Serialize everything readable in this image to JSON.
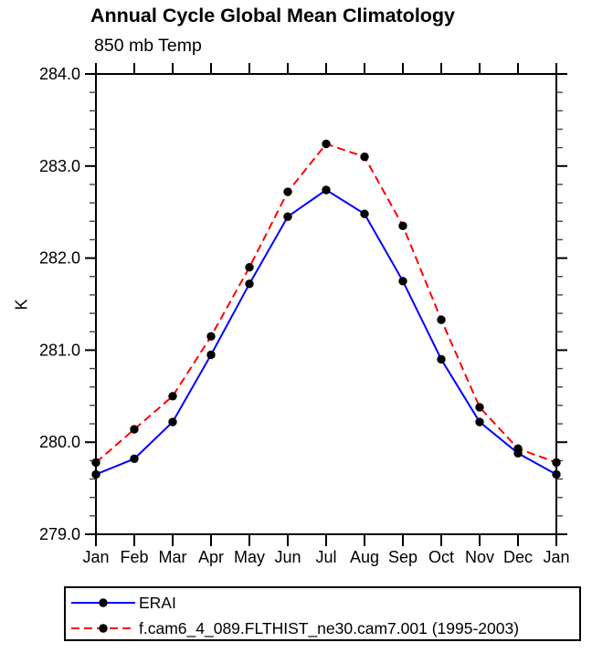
{
  "page": {
    "title": "Annual Cycle Global Mean Climatology",
    "subtitle": "850 mb Temp"
  },
  "chart_data": {
    "type": "line",
    "title": "Annual Cycle Global Mean Climatology",
    "subtitle": "850 mb Temp",
    "xlabel": "",
    "ylabel": "K",
    "x_categories": [
      "Jan",
      "Feb",
      "Mar",
      "Apr",
      "May",
      "Jun",
      "Jul",
      "Aug",
      "Sep",
      "Oct",
      "Nov",
      "Dec",
      "Jan"
    ],
    "y_axis": {
      "min": 279.0,
      "max": 284.0,
      "major_step": 1.0,
      "minor_step": 0.2,
      "major_tick_labels": [
        "284.0",
        "283.0",
        "282.0",
        "281.0",
        "280.0",
        "279.0"
      ]
    },
    "grid": "off",
    "legend_position": "bottom-left-box",
    "series": [
      {
        "name": "ERAI",
        "color": "#0000ff",
        "line_style": "solid",
        "marker": "filled-circle",
        "marker_color": "#000000",
        "values": [
          279.65,
          279.82,
          280.22,
          280.95,
          281.72,
          282.45,
          282.74,
          282.48,
          281.75,
          280.9,
          280.22,
          279.88,
          279.65
        ]
      },
      {
        "name": "f.cam6_4_089.FLTHIST_ne30.cam7.001 (1995-2003)",
        "color": "#ff0000",
        "line_style": "dashed",
        "marker": "filled-circle",
        "marker_color": "#000000",
        "values": [
          279.78,
          280.14,
          280.5,
          281.15,
          281.9,
          282.72,
          283.24,
          283.1,
          282.35,
          281.33,
          280.38,
          279.93,
          279.78
        ]
      }
    ]
  }
}
